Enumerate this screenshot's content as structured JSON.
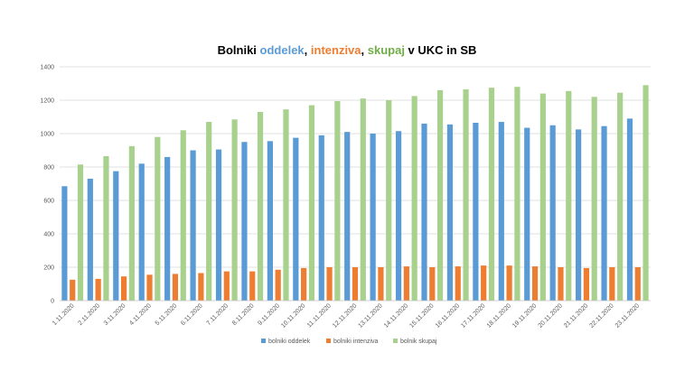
{
  "colors": {
    "background": "#ffffff",
    "gridline": "#d9d9d9",
    "axis": "#bfbfbf",
    "text": "#595959",
    "title_default": "#000000"
  },
  "chart_data": {
    "type": "bar",
    "title_parts": [
      {
        "text": "Bolniki ",
        "color": "#000000"
      },
      {
        "text": "oddelek",
        "color": "#5b9bd5"
      },
      {
        "text": ", ",
        "color": "#000000"
      },
      {
        "text": "intenziva",
        "color": "#ed7d31"
      },
      {
        "text": ", ",
        "color": "#000000"
      },
      {
        "text": "skupaj",
        "color": "#70ad47"
      },
      {
        "text": " v UKC in SB",
        "color": "#000000"
      }
    ],
    "categories": [
      "1.11.2020",
      "2.11.2020",
      "3.11.2020",
      "4.11.2020",
      "5.11.2020",
      "6.11.2020",
      "7.11.2020",
      "8.11.2020",
      "9.11.2020",
      "10.11.2020",
      "11.11.2020",
      "12.11.2020",
      "13.11.2020",
      "14.11.2020",
      "15.11.2020",
      "16.11.2020",
      "17.11.2020",
      "18.11.2020",
      "19.11.2020",
      "20.11.2020",
      "21.11.2020",
      "22.11.2020",
      "23.11.2020"
    ],
    "series": [
      {
        "name": "bolniki oddelek",
        "color": "#5b9bd5",
        "values": [
          685,
          730,
          775,
          820,
          860,
          900,
          905,
          950,
          955,
          975,
          990,
          1010,
          1000,
          1015,
          1060,
          1055,
          1065,
          1070,
          1035,
          1050,
          1025,
          1045,
          1090
        ]
      },
      {
        "name": "bolniki intenziva",
        "color": "#ed7d31",
        "values": [
          125,
          130,
          145,
          155,
          160,
          165,
          175,
          175,
          185,
          195,
          200,
          200,
          200,
          205,
          200,
          205,
          210,
          210,
          205,
          200,
          195,
          200,
          200
        ]
      },
      {
        "name": "bolnik skupaj",
        "color": "#a9d18e",
        "values": [
          815,
          865,
          925,
          980,
          1020,
          1070,
          1085,
          1130,
          1145,
          1170,
          1195,
          1210,
          1200,
          1225,
          1260,
          1265,
          1275,
          1280,
          1240,
          1255,
          1220,
          1245,
          1290
        ]
      }
    ],
    "ylim": [
      0,
      1400
    ],
    "yticks": [
      0,
      200,
      400,
      600,
      800,
      1000,
      1200,
      1400
    ],
    "grid": true,
    "legend_position": "bottom"
  }
}
